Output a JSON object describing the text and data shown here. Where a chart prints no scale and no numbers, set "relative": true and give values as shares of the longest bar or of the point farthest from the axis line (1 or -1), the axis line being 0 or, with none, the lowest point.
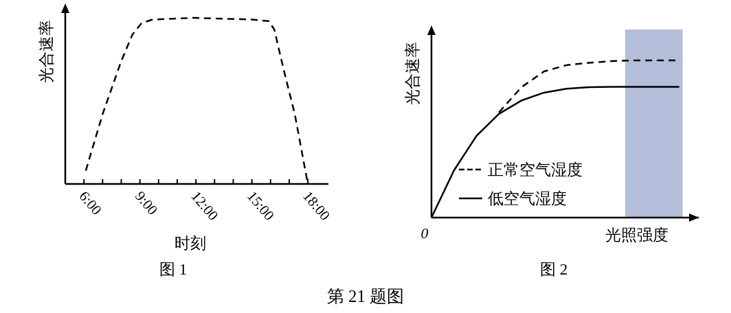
{
  "chart_data": [
    {
      "type": "line",
      "relative": true,
      "xlabel": "时刻",
      "ylabel": "光合速率",
      "title": "图 1",
      "annotations": [
        "第 21 题图"
      ],
      "line_style": "dashed",
      "grid": false,
      "x": [
        6.1,
        7.0,
        8.0,
        8.6,
        9.1,
        9.7,
        11.9,
        15.0,
        15.9,
        16.2,
        16.7,
        17.3,
        18.0
      ],
      "xlim": [
        5.0,
        19.1
      ],
      "xticks": [
        {
          "value": 6,
          "label": "6:00"
        },
        {
          "value": 7,
          "label": null
        },
        {
          "value": 8,
          "label": null
        },
        {
          "value": 9,
          "label": "9:00"
        },
        {
          "value": 10,
          "label": null
        },
        {
          "value": 11,
          "label": null
        },
        {
          "value": 12,
          "label": "12:00"
        },
        {
          "value": 13,
          "label": null
        },
        {
          "value": 14,
          "label": null
        },
        {
          "value": 15,
          "label": "15:00"
        },
        {
          "value": 16,
          "label": null
        },
        {
          "value": 17,
          "label": null
        },
        {
          "value": 18,
          "label": "18:00"
        }
      ],
      "series": [
        {
          "color": "#000000",
          "values": [
            0.08,
            0.42,
            0.74,
            0.9,
            0.97,
            0.99,
            1.0,
            0.99,
            0.98,
            0.93,
            0.69,
            0.42,
            0.0
          ]
        }
      ]
    },
    {
      "type": "line",
      "relative": true,
      "xlabel": "光照强度",
      "ylabel": "光合速率",
      "title": "图 2",
      "legend": "bottom left",
      "grid": false,
      "annotations": [
        "0"
      ],
      "categories": [
        null,
        null,
        null,
        null,
        null,
        null,
        null,
        null,
        null,
        null,
        null,
        null
      ],
      "series": [
        {
          "name": "正常空气湿度",
          "color": "#000000",
          "line_style": "dashed",
          "values": [
            null,
            null,
            null,
            0.67,
            0.83,
            0.93,
            0.97,
            0.985,
            0.995,
            1.0,
            1.0,
            1.0
          ]
        },
        {
          "name": "低空气湿度",
          "color": "#000000",
          "line_style": "solid",
          "values": [
            0,
            0.3,
            0.52,
            0.66,
            0.745,
            0.795,
            0.82,
            0.83,
            0.832,
            0.832,
            0.832,
            0.832
          ]
        }
      ]
    }
  ]
}
